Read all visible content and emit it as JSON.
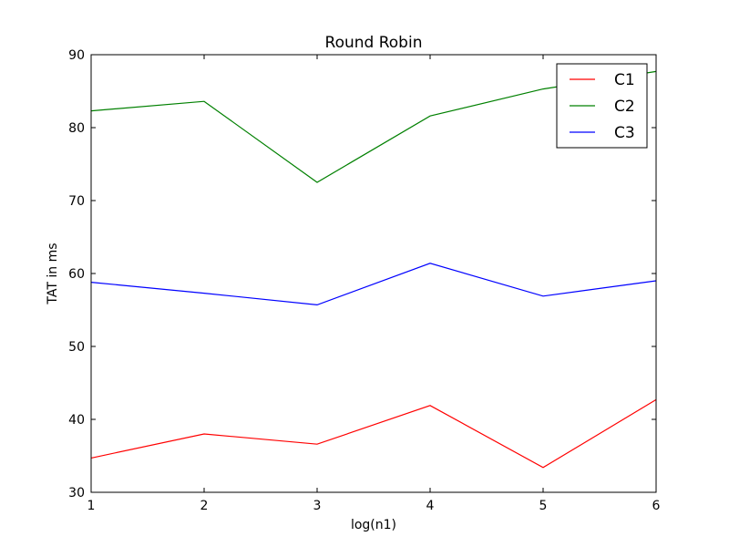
{
  "chart_data": {
    "type": "line",
    "title": "Round Robin",
    "xlabel": "log(n1)",
    "ylabel": "TAT in ms",
    "x": [
      1,
      2,
      3,
      4,
      5,
      6
    ],
    "xlim": [
      1,
      6
    ],
    "ylim": [
      30,
      90
    ],
    "xticks": [
      "1",
      "2",
      "3",
      "4",
      "5",
      "6"
    ],
    "yticks": [
      "30",
      "40",
      "50",
      "60",
      "70",
      "80",
      "90"
    ],
    "grid": false,
    "legend_position": "top-right",
    "series": [
      {
        "name": "C1",
        "color": "#ff0000",
        "values": [
          34.7,
          38.0,
          36.6,
          41.9,
          33.4,
          42.7
        ]
      },
      {
        "name": "C2",
        "color": "#008000",
        "values": [
          82.3,
          83.6,
          72.5,
          81.6,
          85.3,
          87.7
        ]
      },
      {
        "name": "C3",
        "color": "#0000ff",
        "values": [
          58.8,
          57.3,
          55.7,
          61.4,
          56.9,
          59.0
        ]
      }
    ]
  }
}
